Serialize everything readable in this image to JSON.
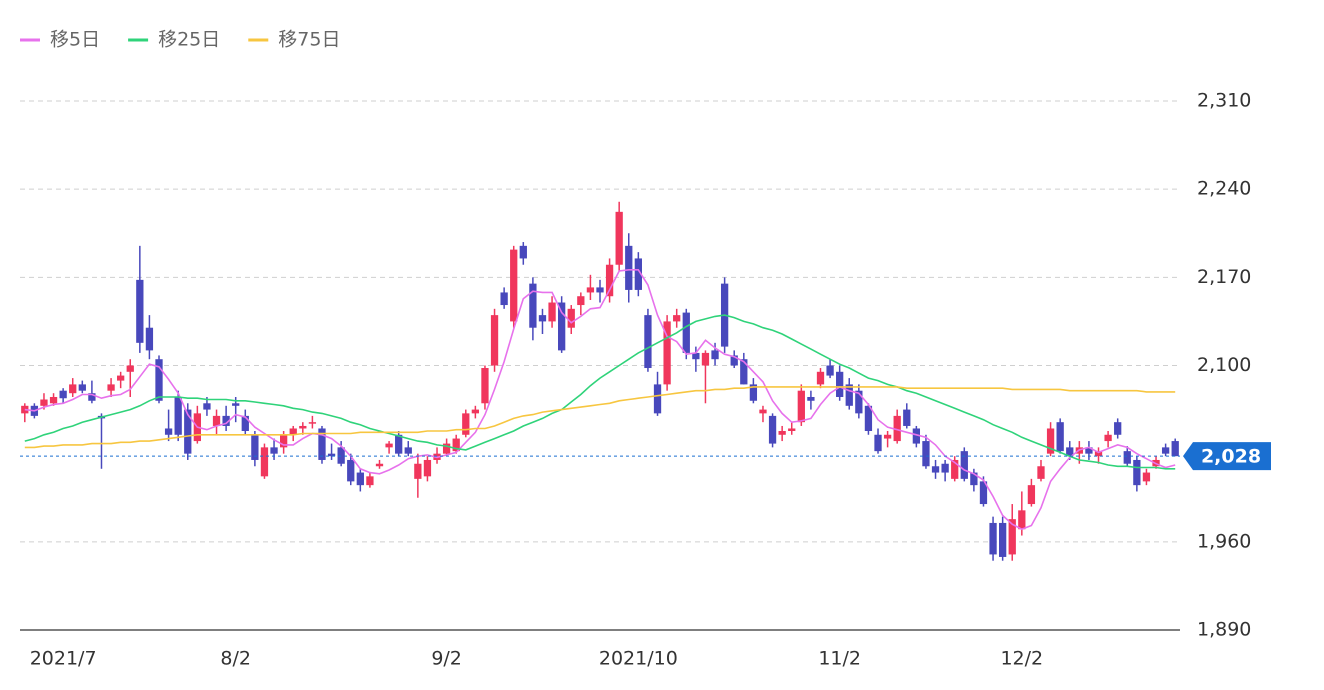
{
  "chart_data": {
    "type": "candlestick",
    "categories": [
      null,
      null,
      null,
      null,
      "2021/7",
      null,
      null,
      null,
      null,
      null,
      null,
      null,
      null,
      null,
      null,
      null,
      null,
      null,
      null,
      null,
      null,
      null,
      "8/2",
      null,
      null,
      null,
      null,
      null,
      null,
      null,
      null,
      null,
      null,
      null,
      null,
      null,
      null,
      null,
      null,
      null,
      null,
      null,
      null,
      null,
      "9/2",
      null,
      null,
      null,
      null,
      null,
      null,
      null,
      null,
      null,
      null,
      null,
      null,
      null,
      null,
      null,
      null,
      null,
      null,
      null,
      "2021/10",
      null,
      null,
      null,
      null,
      null,
      null,
      null,
      null,
      null,
      null,
      null,
      null,
      null,
      null,
      null,
      null,
      null,
      null,
      null,
      null,
      "11/2",
      null,
      null,
      null,
      null,
      null,
      null,
      null,
      null,
      null,
      null,
      null,
      null,
      null,
      null,
      null,
      null,
      null,
      null,
      "12/2",
      null,
      null,
      null,
      null,
      null,
      null,
      null,
      null,
      null,
      null,
      null,
      null,
      null,
      null,
      null,
      null
    ],
    "open": [
      2062,
      2068,
      2068,
      2070,
      2080,
      2078,
      2085,
      2078,
      2060,
      2080,
      2088,
      2095,
      2168,
      2130,
      2105,
      2050,
      2075,
      2065,
      2040,
      2070,
      2052,
      2060,
      2070,
      2060,
      2045,
      2012,
      2035,
      2035,
      2045,
      2050,
      2055,
      2050,
      2030,
      2035,
      2025,
      2015,
      2005,
      2020,
      2035,
      2045,
      2035,
      2010,
      2012,
      2025,
      2030,
      2032,
      2045,
      2062,
      2070,
      2100,
      2158,
      2135,
      2195,
      2165,
      2140,
      2135,
      2150,
      2130,
      2148,
      2158,
      2162,
      2155,
      2180,
      2195,
      2185,
      2140,
      2085,
      2085,
      2135,
      2142,
      2110,
      2100,
      2112,
      2165,
      2108,
      2105,
      2085,
      2062,
      2060,
      2045,
      2048,
      2055,
      2075,
      2085,
      2100,
      2095,
      2085,
      2080,
      2068,
      2045,
      2042,
      2040,
      2065,
      2050,
      2040,
      2020,
      2022,
      2010,
      2032,
      2015,
      2008,
      1975,
      1975,
      1950,
      1970,
      1990,
      2010,
      2030,
      2055,
      2035,
      2030,
      2035,
      2028,
      2040,
      2055,
      2032,
      2025,
      2008,
      2020,
      2035,
      2040
    ],
    "high": [
      2070,
      2070,
      2078,
      2078,
      2082,
      2090,
      2088,
      2088,
      2062,
      2090,
      2095,
      2105,
      2195,
      2140,
      2108,
      2065,
      2080,
      2070,
      2068,
      2075,
      2065,
      2068,
      2075,
      2065,
      2048,
      2038,
      2042,
      2048,
      2052,
      2055,
      2060,
      2052,
      2038,
      2040,
      2030,
      2018,
      2015,
      2025,
      2040,
      2048,
      2040,
      2030,
      2028,
      2035,
      2042,
      2045,
      2065,
      2068,
      2100,
      2145,
      2162,
      2195,
      2198,
      2170,
      2145,
      2155,
      2155,
      2148,
      2158,
      2172,
      2168,
      2185,
      2230,
      2205,
      2190,
      2145,
      2095,
      2140,
      2145,
      2145,
      2115,
      2112,
      2118,
      2170,
      2112,
      2110,
      2090,
      2068,
      2062,
      2052,
      2055,
      2085,
      2080,
      2098,
      2105,
      2100,
      2090,
      2085,
      2070,
      2050,
      2048,
      2065,
      2070,
      2052,
      2045,
      2025,
      2025,
      2028,
      2035,
      2018,
      2012,
      1980,
      1980,
      1990,
      2000,
      2010,
      2025,
      2055,
      2058,
      2040,
      2040,
      2040,
      2035,
      2048,
      2058,
      2036,
      2028,
      2018,
      2028,
      2038,
      2042
    ],
    "low": [
      2055,
      2058,
      2065,
      2068,
      2070,
      2075,
      2078,
      2070,
      2018,
      2075,
      2082,
      2075,
      2110,
      2105,
      2070,
      2040,
      2040,
      2025,
      2038,
      2060,
      2045,
      2048,
      2055,
      2045,
      2020,
      2010,
      2025,
      2030,
      2040,
      2045,
      2050,
      2022,
      2025,
      2020,
      2005,
      2000,
      2003,
      2018,
      2030,
      2028,
      2028,
      1995,
      2008,
      2022,
      2028,
      2030,
      2043,
      2058,
      2065,
      2095,
      2145,
      2130,
      2180,
      2120,
      2125,
      2130,
      2110,
      2125,
      2140,
      2152,
      2150,
      2150,
      2175,
      2150,
      2155,
      2095,
      2060,
      2080,
      2130,
      2105,
      2095,
      2070,
      2100,
      2110,
      2098,
      2085,
      2070,
      2055,
      2035,
      2040,
      2045,
      2052,
      2065,
      2082,
      2090,
      2072,
      2065,
      2058,
      2045,
      2030,
      2035,
      2038,
      2050,
      2035,
      2018,
      2010,
      2008,
      2008,
      2008,
      2000,
      1988,
      1945,
      1945,
      1945,
      1965,
      1988,
      2008,
      2028,
      2030,
      2025,
      2022,
      2025,
      2022,
      2035,
      2042,
      2020,
      2000,
      2005,
      2018,
      2028,
      2028
    ],
    "close": [
      2068,
      2060,
      2073,
      2075,
      2074,
      2085,
      2080,
      2072,
      2058,
      2085,
      2092,
      2100,
      2118,
      2112,
      2072,
      2045,
      2045,
      2030,
      2062,
      2065,
      2060,
      2052,
      2068,
      2048,
      2025,
      2035,
      2030,
      2045,
      2050,
      2052,
      2055,
      2025,
      2028,
      2022,
      2008,
      2005,
      2012,
      2022,
      2038,
      2030,
      2030,
      2022,
      2025,
      2030,
      2038,
      2042,
      2062,
      2065,
      2098,
      2140,
      2148,
      2192,
      2185,
      2130,
      2135,
      2150,
      2112,
      2145,
      2155,
      2162,
      2158,
      2180,
      2222,
      2160,
      2160,
      2098,
      2062,
      2135,
      2140,
      2110,
      2105,
      2110,
      2105,
      2115,
      2100,
      2085,
      2072,
      2065,
      2038,
      2048,
      2050,
      2080,
      2072,
      2095,
      2092,
      2075,
      2068,
      2062,
      2048,
      2032,
      2045,
      2060,
      2052,
      2038,
      2020,
      2015,
      2015,
      2025,
      2010,
      2005,
      1990,
      1950,
      1948,
      1978,
      1985,
      2005,
      2020,
      2050,
      2032,
      2028,
      2035,
      2030,
      2032,
      2045,
      2045,
      2022,
      2005,
      2015,
      2025,
      2030,
      2028
    ],
    "up_color": "#f0365c",
    "down_color": "#4848bc",
    "series": [
      {
        "name": "移5日",
        "color": "#e772ec",
        "values": [
          2065,
          2064,
          2067,
          2069,
          2070,
          2073,
          2077,
          2077,
          2074,
          2076,
          2077,
          2081,
          2091,
          2101,
          2099,
          2089,
          2078,
          2061,
          2051,
          2049,
          2052,
          2054,
          2061,
          2059,
          2051,
          2046,
          2041,
          2037,
          2037,
          2042,
          2046,
          2045,
          2042,
          2036,
          2028,
          2018,
          2015,
          2014,
          2017,
          2021,
          2026,
          2028,
          2029,
          2027,
          2029,
          2031,
          2039,
          2047,
          2061,
          2081,
          2103,
          2129,
          2153,
          2159,
          2158,
          2158,
          2142,
          2134,
          2139,
          2145,
          2146,
          2160,
          2175,
          2176,
          2176,
          2164,
          2140,
          2123,
          2119,
          2109,
          2110,
          2120,
          2114,
          2109,
          2107,
          2103,
          2095,
          2087,
          2072,
          2062,
          2055,
          2056,
          2058,
          2069,
          2078,
          2083,
          2080,
          2078,
          2069,
          2057,
          2051,
          2049,
          2047,
          2045,
          2043,
          2037,
          2028,
          2023,
          2017,
          2014,
          2009,
          1996,
          1981,
          1974,
          1970,
          1973,
          1987,
          2008,
          2018,
          2027,
          2033,
          2035,
          2031,
          2034,
          2037,
          2035,
          2030,
          2026,
          2022,
          2019,
          2021
        ]
      },
      {
        "name": "移25日",
        "color": "#2fd37a",
        "values": [
          2040,
          2042,
          2045,
          2047,
          2050,
          2052,
          2055,
          2057,
          2059,
          2061,
          2063,
          2065,
          2068,
          2072,
          2075,
          2075,
          2075,
          2074,
          2074,
          2073,
          2073,
          2073,
          2072,
          2072,
          2071,
          2070,
          2069,
          2068,
          2066,
          2065,
          2063,
          2062,
          2060,
          2058,
          2055,
          2053,
          2050,
          2048,
          2046,
          2044,
          2042,
          2040,
          2039,
          2037,
          2036,
          2034,
          2033,
          2036,
          2039,
          2042,
          2045,
          2048,
          2052,
          2055,
          2058,
          2062,
          2065,
          2071,
          2077,
          2084,
          2090,
          2095,
          2100,
          2105,
          2110,
          2114,
          2118,
          2122,
          2126,
          2131,
          2135,
          2137,
          2139,
          2140,
          2138,
          2135,
          2133,
          2130,
          2128,
          2125,
          2121,
          2117,
          2113,
          2109,
          2105,
          2101,
          2098,
          2094,
          2090,
          2088,
          2085,
          2083,
          2080,
          2078,
          2075,
          2072,
          2069,
          2066,
          2063,
          2060,
          2057,
          2053,
          2050,
          2047,
          2043,
          2040,
          2037,
          2034,
          2031,
          2028,
          2025,
          2024,
          2023,
          2021,
          2020,
          2020,
          2019,
          2019,
          2019,
          2018,
          2018
        ]
      },
      {
        "name": "移75日",
        "color": "#f7c640",
        "values": [
          2035,
          2035,
          2036,
          2036,
          2037,
          2037,
          2037,
          2038,
          2038,
          2038,
          2039,
          2039,
          2040,
          2040,
          2041,
          2042,
          2043,
          2044,
          2045,
          2045,
          2045,
          2045,
          2045,
          2045,
          2045,
          2045,
          2045,
          2045,
          2045,
          2046,
          2046,
          2046,
          2046,
          2046,
          2046,
          2047,
          2047,
          2047,
          2047,
          2047,
          2047,
          2047,
          2048,
          2048,
          2048,
          2049,
          2049,
          2050,
          2050,
          2052,
          2055,
          2058,
          2060,
          2061,
          2063,
          2064,
          2065,
          2066,
          2067,
          2068,
          2069,
          2070,
          2072,
          2073,
          2074,
          2075,
          2076,
          2077,
          2078,
          2079,
          2080,
          2080,
          2081,
          2081,
          2082,
          2082,
          2083,
          2083,
          2083,
          2083,
          2083,
          2083,
          2083,
          2083,
          2083,
          2083,
          2083,
          2083,
          2083,
          2083,
          2083,
          2083,
          2082,
          2082,
          2082,
          2082,
          2082,
          2082,
          2082,
          2082,
          2082,
          2082,
          2082,
          2081,
          2081,
          2081,
          2081,
          2081,
          2081,
          2080,
          2080,
          2080,
          2080,
          2080,
          2080,
          2080,
          2080,
          2079,
          2079,
          2079,
          2079
        ]
      }
    ],
    "ylim": [
      1890,
      2310
    ],
    "yticks": [
      {
        "value": 1890,
        "label": "1,890"
      },
      {
        "value": 1960,
        "label": "1,960"
      },
      {
        "value": 2100,
        "label": "2,100"
      },
      {
        "value": 2170,
        "label": "2,170"
      },
      {
        "value": 2240,
        "label": "2,240"
      },
      {
        "value": 2310,
        "label": "2,310"
      }
    ],
    "grid": true,
    "last_price": {
      "value": 2028,
      "label": "2,028"
    },
    "last_price_color": "#1a6fd1",
    "legend": "top-left"
  }
}
